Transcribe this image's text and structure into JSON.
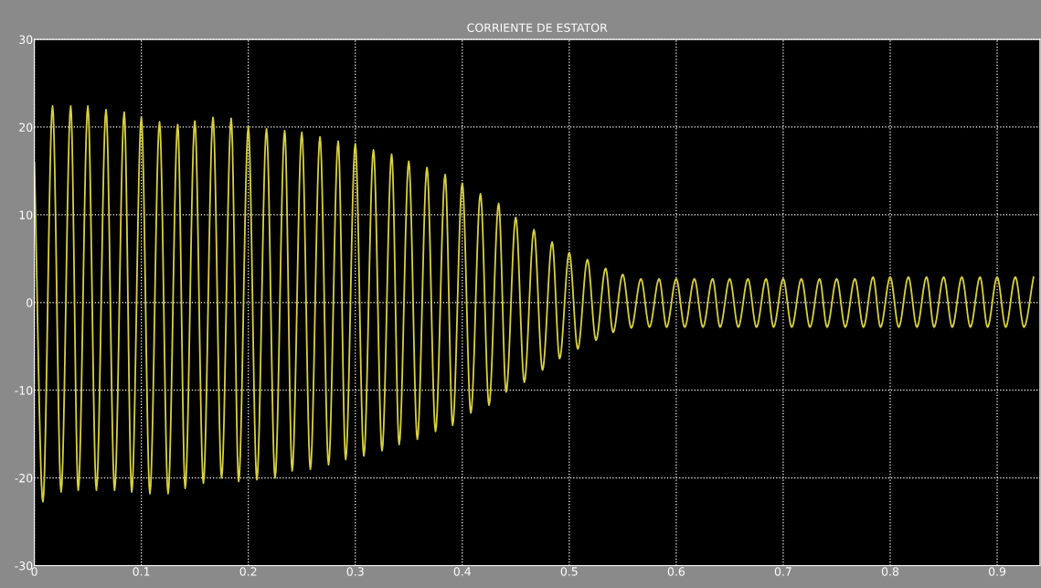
{
  "chart_data": {
    "type": "line",
    "title": "CORRIENTE DE ESTATOR",
    "x": [
      0,
      0.008,
      0.017,
      0.025,
      0.034,
      0.041,
      0.05,
      0.058,
      0.067,
      0.075,
      0.084,
      0.091,
      0.1,
      0.108,
      0.117,
      0.125,
      0.134,
      0.141,
      0.15,
      0.158,
      0.167,
      0.175,
      0.184,
      0.191,
      0.2,
      0.208,
      0.217,
      0.225,
      0.234,
      0.241,
      0.25,
      0.258,
      0.267,
      0.275,
      0.284,
      0.291,
      0.3,
      0.308,
      0.317,
      0.325,
      0.334,
      0.341,
      0.35,
      0.358,
      0.367,
      0.375,
      0.384,
      0.391,
      0.4,
      0.408,
      0.417,
      0.425,
      0.434,
      0.441,
      0.45,
      0.458,
      0.467,
      0.475,
      0.484,
      0.491,
      0.5,
      0.508,
      0.517,
      0.525,
      0.534,
      0.541,
      0.55,
      0.558,
      0.567,
      0.575,
      0.584,
      0.591,
      0.6,
      0.608,
      0.617,
      0.625,
      0.634,
      0.641,
      0.65,
      0.658,
      0.667,
      0.675,
      0.684,
      0.691,
      0.7,
      0.708,
      0.717,
      0.725,
      0.734,
      0.741,
      0.75,
      0.758,
      0.767,
      0.775,
      0.784,
      0.791,
      0.8,
      0.808,
      0.817,
      0.825,
      0.834,
      0.841,
      0.85,
      0.858,
      0.867,
      0.875,
      0.884,
      0.891,
      0.9,
      0.908,
      0.917,
      0.925,
      0.934
    ],
    "series": [
      {
        "color": "#d8d040",
        "values": [
          16,
          -22.7,
          22.4,
          -21.6,
          22.4,
          -21.4,
          22.4,
          -21.4,
          22,
          -21.4,
          21.7,
          -21.6,
          21.1,
          -21.8,
          20.6,
          -21.8,
          20.3,
          -21.2,
          20.7,
          -20.6,
          21.1,
          -20,
          21,
          -20.4,
          20,
          -20.2,
          19.8,
          -20,
          19.6,
          -19.2,
          19.4,
          -19,
          18.9,
          -18.5,
          18.4,
          -17.9,
          18.1,
          -17.5,
          17.4,
          -16.9,
          16.9,
          -16.2,
          16.1,
          -15.6,
          15.4,
          -14.7,
          14.6,
          -14,
          13.6,
          -12.6,
          12.4,
          -11.7,
          11.3,
          -10.2,
          9.7,
          -9.1,
          8.3,
          -7.7,
          6.9,
          -6.4,
          5.7,
          -5.3,
          4.9,
          -4.3,
          3.9,
          -3.4,
          3.2,
          -2.9,
          2.7,
          -2.8,
          2.7,
          -2.8,
          2.7,
          -2.8,
          2.7,
          -2.8,
          2.7,
          -2.8,
          2.7,
          -2.8,
          2.7,
          -2.8,
          2.7,
          -2.8,
          2.7,
          -2.8,
          2.7,
          -2.8,
          2.7,
          -2.8,
          2.7,
          -2.8,
          2.7,
          -2.8,
          2.9,
          -2.8,
          2.9,
          -2.8,
          2.9,
          -2.8,
          2.9,
          -2.8,
          2.9,
          -2.8,
          2.9,
          -2.8,
          2.9,
          -2.8,
          2.9,
          -2.8,
          2.9,
          -2.8,
          2.9
        ]
      }
    ],
    "xlim": [
      0,
      0.94
    ],
    "ylim": [
      -30,
      30
    ],
    "xticks": [
      0,
      0.1,
      0.2,
      0.3,
      0.4,
      0.5,
      0.6,
      0.7,
      0.8,
      0.9
    ],
    "yticks": [
      -30,
      -20,
      -10,
      0,
      10,
      20,
      30
    ],
    "grid": true,
    "legend": false
  }
}
